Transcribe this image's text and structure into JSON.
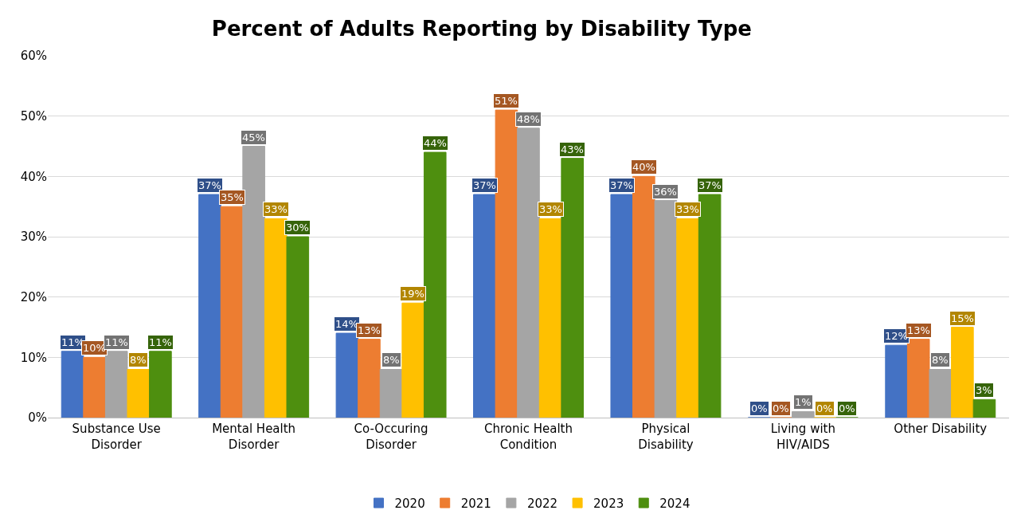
{
  "chart_data": {
    "type": "bar",
    "title": "Percent of Adults Reporting by Disability Type",
    "categories": [
      "Substance Use Disorder",
      "Mental Health Disorder",
      "Co-Occuring Disorder",
      "Chronic Health Condition",
      "Physical Disability",
      "Living with HIV/AIDS",
      "Other Disability"
    ],
    "series": [
      {
        "name": "2020",
        "color": "#4472c4",
        "values": [
          11,
          37,
          14,
          37,
          37,
          0,
          12
        ],
        "value_labels": [
          "11%",
          "37%",
          "14%",
          "37%",
          "37%",
          "0%",
          "12%"
        ]
      },
      {
        "name": "2021",
        "color": "#ed7d31",
        "values": [
          10,
          35,
          13,
          51,
          40,
          0,
          13
        ],
        "value_labels": [
          "10%",
          "35%",
          "13%",
          "51%",
          "40%",
          "0%",
          "13%"
        ]
      },
      {
        "name": "2022",
        "color": "#a5a5a5",
        "values": [
          11,
          45,
          8,
          48,
          36,
          1,
          8
        ],
        "value_labels": [
          "11%",
          "45%",
          "8%",
          "48%",
          "36%",
          "1%",
          "8%"
        ]
      },
      {
        "name": "2023",
        "color": "#ffc000",
        "values": [
          8,
          33,
          19,
          33,
          33,
          0,
          15
        ],
        "value_labels": [
          "8%",
          "33%",
          "19%",
          "33%",
          "33%",
          "0%",
          "15%"
        ]
      },
      {
        "name": "2024",
        "color": "#4e8f0f",
        "values": [
          11,
          30,
          44,
          43,
          37,
          0,
          3
        ],
        "value_labels": [
          "11%",
          "30%",
          "44%",
          "43%",
          "37%",
          "0%",
          "3%"
        ]
      }
    ],
    "ylim": [
      0,
      60
    ],
    "yticks": [
      {
        "value": 0,
        "label": "0%"
      },
      {
        "value": 10,
        "label": "10%"
      },
      {
        "value": 20,
        "label": "20%"
      },
      {
        "value": 30,
        "label": "30%"
      },
      {
        "value": 40,
        "label": "40%"
      },
      {
        "value": 50,
        "label": "50%"
      },
      {
        "value": 60,
        "label": "60%"
      }
    ],
    "grid": "y",
    "legend": "bottom"
  }
}
